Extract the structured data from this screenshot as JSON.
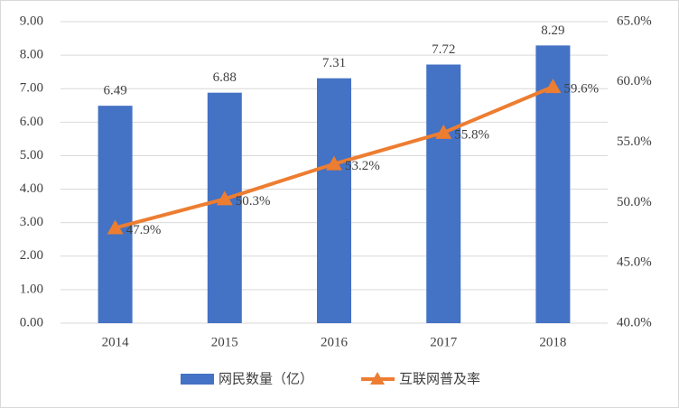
{
  "chart_data": {
    "type": "bar",
    "categories": [
      "2014",
      "2015",
      "2016",
      "2017",
      "2018"
    ],
    "series": [
      {
        "name": "网民数量（亿）",
        "type": "bar",
        "color": "#4472c4",
        "values": [
          6.49,
          6.88,
          7.31,
          7.72,
          8.29
        ]
      },
      {
        "name": "互联网普及率",
        "type": "line",
        "axis": "y2",
        "color": "#ed7d31",
        "values": [
          47.9,
          50.3,
          53.2,
          55.8,
          59.6
        ],
        "value_labels": [
          "47.9%",
          "50.3%",
          "53.2%",
          "55.8%",
          "59.6%"
        ]
      }
    ],
    "ylim": [
      0,
      9
    ],
    "yticks": [
      {
        "value": 0,
        "label": "0.00"
      },
      {
        "value": 1,
        "label": "1.00"
      },
      {
        "value": 2,
        "label": "2.00"
      },
      {
        "value": 3,
        "label": "3.00"
      },
      {
        "value": 4,
        "label": "4.00"
      },
      {
        "value": 5,
        "label": "5.00"
      },
      {
        "value": 6,
        "label": "6.00"
      },
      {
        "value": 7,
        "label": "7.00"
      },
      {
        "value": 8,
        "label": "8.00"
      },
      {
        "value": 9,
        "label": "9.00"
      }
    ],
    "y2lim": [
      40,
      65
    ],
    "y2ticks": [
      {
        "value": 40,
        "label": "40.0%"
      },
      {
        "value": 45,
        "label": "45.0%"
      },
      {
        "value": 50,
        "label": "50.0%"
      },
      {
        "value": 55,
        "label": "55.0%"
      },
      {
        "value": 60,
        "label": "60.0%"
      },
      {
        "value": 65,
        "label": "65.0%"
      }
    ],
    "grid": true,
    "legend": "bottom"
  }
}
